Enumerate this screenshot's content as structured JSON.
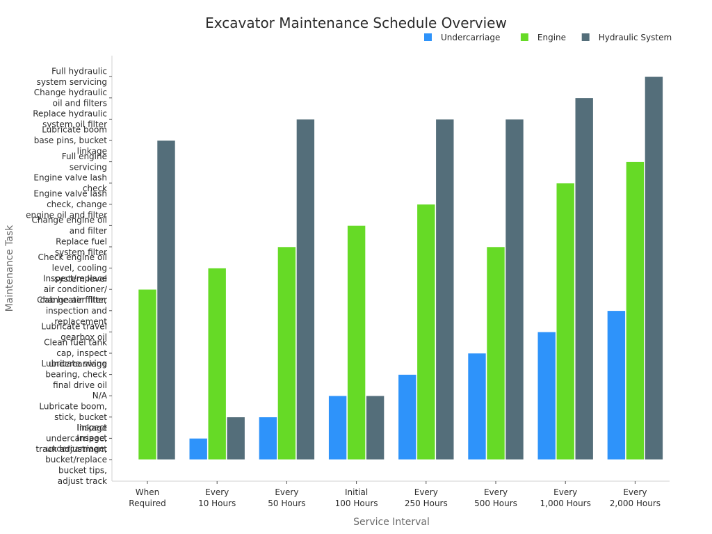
{
  "chart_data": {
    "type": "bar",
    "title": "Excavator Maintenance Schedule Overview",
    "xlabel": "Service Interval",
    "ylabel": "Maintenance Task",
    "categories": [
      "When\nRequired",
      "Every\n10 Hours",
      "Every\n50 Hours",
      "Initial\n100 Hours",
      "Every\n250 Hours",
      "Every\n500 Hours",
      "Every\n1,000 Hours",
      "Every\n2,000 Hours"
    ],
    "y_tick_labels": [
      "Inspect\nundercarriage,\nbucket/replace\nbucket tips,\nadjust track",
      "Inspect\nundercarriage,\ntrack adjustment",
      "Lubricate boom,\nstick, bucket\nlinkage",
      "N/A",
      "Lubricate swing\nbearing, check\nfinal drive oil",
      "Clean fuel tank\ncap, inspect\nundercarriage",
      "Lubricate travel\ngearbox oil",
      "Change air filter,\ninspection and\nreplacement",
      "Inspect/replace\nair conditioner/\ncab heater filter",
      "Check engine oil\nlevel, cooling\nsystem level",
      "Replace fuel\nsystem filter",
      "Change engine oil\nand filter",
      "Engine valve lash\ncheck, change\nengine oil and filter",
      "Engine valve lash\ncheck",
      "Full engine\nservicing",
      "Lubricate boom\nbase pins, bucket\nlinkage",
      "Replace hydraulic\nsystem oil filter",
      "Change hydraulic\noil and filters",
      "Full hydraulic\nsystem servicing"
    ],
    "ylim": [
      -1,
      19
    ],
    "legend_position": "top-right",
    "grid": false,
    "series": [
      {
        "name": "Undercarriage",
        "color": "#2E93FA",
        "values": [
          null,
          1,
          2,
          3,
          4,
          5,
          6,
          7
        ]
      },
      {
        "name": "Engine",
        "color": "#66DA26",
        "values": [
          8,
          9,
          10,
          11,
          12,
          10,
          13,
          14
        ]
      },
      {
        "name": "Hydraulic System",
        "color": "#546E7A",
        "values": [
          15,
          2,
          16,
          3,
          16,
          16,
          17,
          18
        ]
      }
    ]
  }
}
